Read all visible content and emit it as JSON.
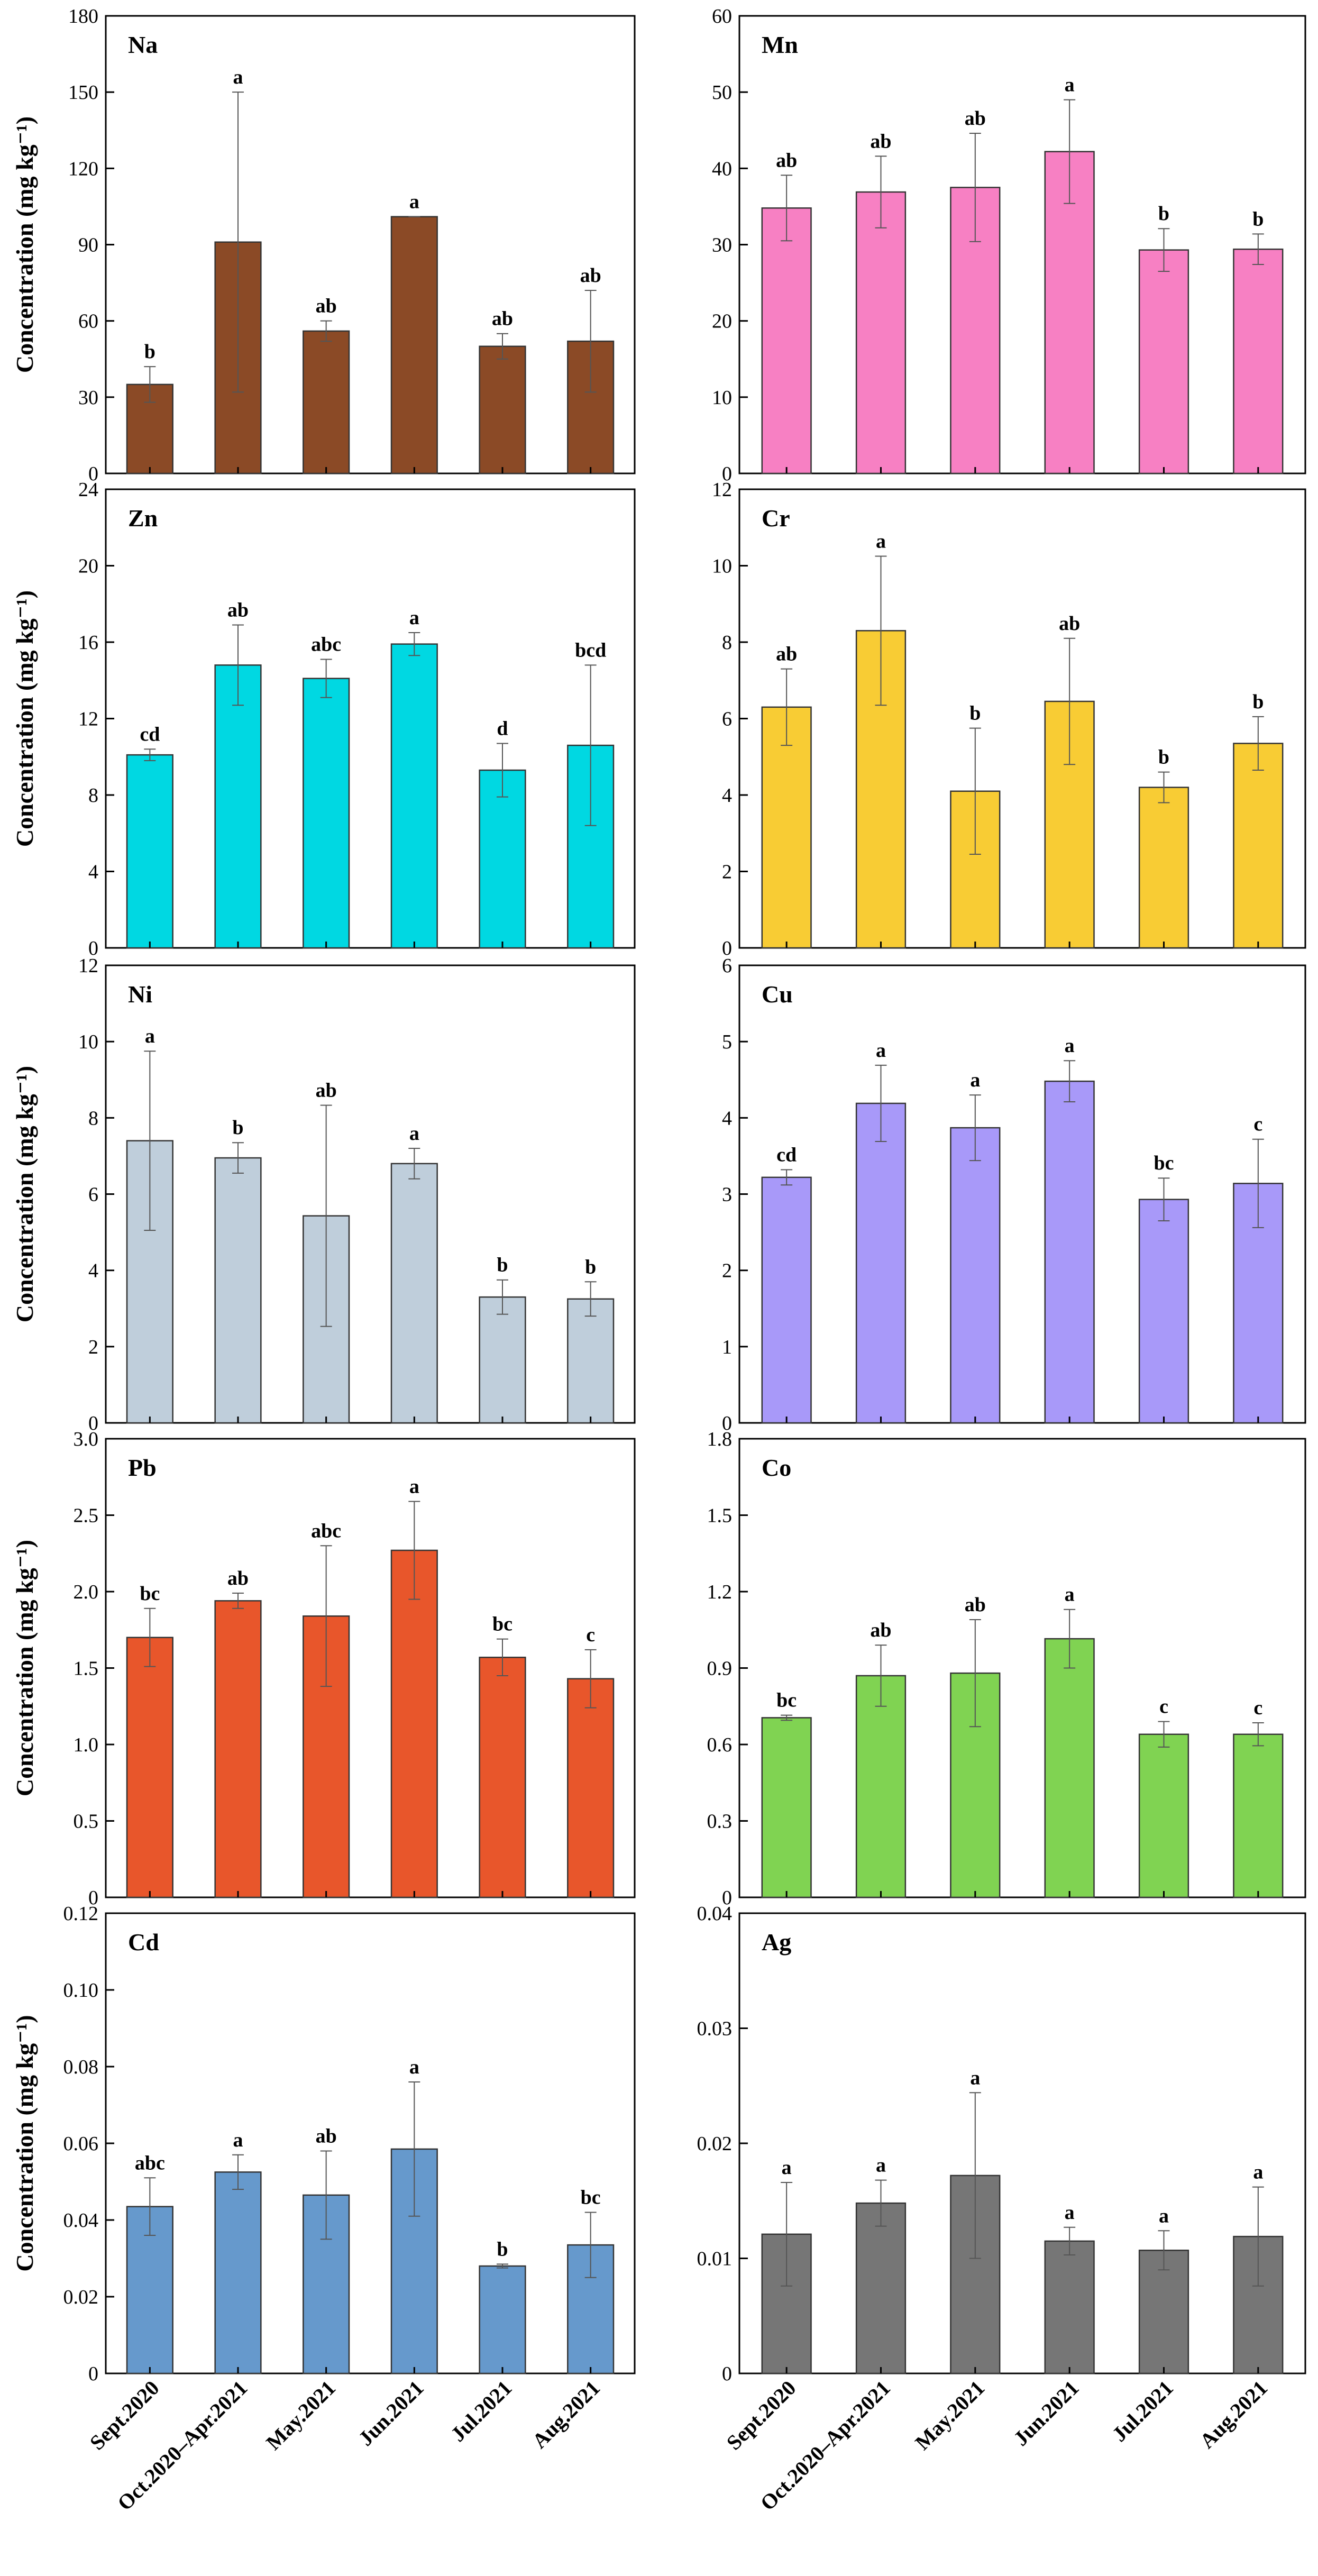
{
  "chart_data": [
    {
      "type": "bar",
      "title": "Na",
      "categories": [
        "Sept.2020",
        "Oct.2020–Apr.2021",
        "May.2021",
        "Jun.2021",
        "Jul.2021",
        "Aug.2021"
      ],
      "values": [
        35,
        91,
        56,
        101,
        50,
        52
      ],
      "errors": [
        7,
        59,
        4,
        0,
        5,
        20
      ],
      "letters": [
        "b",
        "a",
        "ab",
        "a",
        "ab",
        "ab"
      ],
      "ylabel": "Concentration (mg kg⁻¹)",
      "ylim": [
        0,
        180
      ],
      "yticks": [
        "0",
        "30",
        "60",
        "90",
        "120",
        "150",
        "180"
      ],
      "color": "#8B4A26"
    },
    {
      "type": "bar",
      "title": "Mn",
      "categories": [
        "Sept.2020",
        "Oct.2020–Apr.2021",
        "May.2021",
        "Jun.2021",
        "Jul.2021",
        "Aug.2021"
      ],
      "values": [
        34.8,
        36.9,
        37.5,
        42.2,
        29.3,
        29.4
      ],
      "errors": [
        4.3,
        4.7,
        7.1,
        6.8,
        2.8,
        2.0
      ],
      "letters": [
        "ab",
        "ab",
        "ab",
        "a",
        "b",
        "b"
      ],
      "ylabel": "",
      "ylim": [
        0,
        60
      ],
      "yticks": [
        "0",
        "10",
        "20",
        "30",
        "40",
        "50",
        "60"
      ],
      "color": "#F780C3"
    },
    {
      "type": "bar",
      "title": "Zn",
      "categories": [
        "Sept.2020",
        "Oct.2020–Apr.2021",
        "May.2021",
        "Jun.2021",
        "Jul.2021",
        "Aug.2021"
      ],
      "values": [
        10.1,
        14.8,
        14.1,
        15.9,
        9.3,
        10.6
      ],
      "errors": [
        0.3,
        2.1,
        1.0,
        0.6,
        1.4,
        4.2
      ],
      "letters": [
        "cd",
        "ab",
        "abc",
        "a",
        "d",
        "bcd"
      ],
      "ylabel": "Concentration (mg kg⁻¹)",
      "ylim": [
        0,
        24
      ],
      "yticks": [
        "0",
        "4",
        "8",
        "12",
        "16",
        "20",
        "24"
      ],
      "color": "#00D8E2"
    },
    {
      "type": "bar",
      "title": "Cr",
      "categories": [
        "Sept.2020",
        "Oct.2020–Apr.2021",
        "May.2021",
        "Jun.2021",
        "Jul.2021",
        "Aug.2021"
      ],
      "values": [
        6.3,
        8.3,
        4.1,
        6.45,
        4.2,
        5.35
      ],
      "errors": [
        1.0,
        1.95,
        1.65,
        1.65,
        0.4,
        0.7
      ],
      "letters": [
        "ab",
        "a",
        "b",
        "ab",
        "b",
        "b"
      ],
      "ylabel": "",
      "ylim": [
        0,
        12
      ],
      "yticks": [
        "0",
        "2",
        "4",
        "6",
        "8",
        "10",
        "12"
      ],
      "color": "#F8CC34"
    },
    {
      "type": "bar",
      "title": "Ni",
      "categories": [
        "Sept.2020",
        "Oct.2020–Apr.2021",
        "May.2021",
        "Jun.2021",
        "Jul.2021",
        "Aug.2021"
      ],
      "values": [
        7.4,
        6.95,
        5.43,
        6.8,
        3.3,
        3.25
      ],
      "errors": [
        2.35,
        0.4,
        2.9,
        0.4,
        0.45,
        0.45
      ],
      "letters": [
        "a",
        "b",
        "ab",
        "a",
        "b",
        "b"
      ],
      "ylabel": "Concentration (mg kg⁻¹)",
      "ylim": [
        0,
        12
      ],
      "yticks": [
        "0",
        "2",
        "4",
        "6",
        "8",
        "10",
        "12"
      ],
      "color": "#BFCEDB"
    },
    {
      "type": "bar",
      "title": "Cu",
      "categories": [
        "Sept.2020",
        "Oct.2020–Apr.2021",
        "May.2021",
        "Jun.2021",
        "Jul.2021",
        "Aug.2021"
      ],
      "values": [
        3.22,
        4.19,
        3.87,
        4.48,
        2.93,
        3.14
      ],
      "errors": [
        0.1,
        0.5,
        0.43,
        0.27,
        0.28,
        0.58
      ],
      "letters": [
        "cd",
        "a",
        "a",
        "a",
        "bc",
        "c"
      ],
      "ylabel": "",
      "ylim": [
        0,
        6
      ],
      "yticks": [
        "0",
        "1",
        "2",
        "3",
        "4",
        "5",
        "6"
      ],
      "color": "#A899F9"
    },
    {
      "type": "bar",
      "title": "Pb",
      "categories": [
        "Sept.2020",
        "Oct.2020–Apr.2021",
        "May.2021",
        "Jun.2021",
        "Jul.2021",
        "Aug.2021"
      ],
      "values": [
        1.7,
        1.94,
        1.84,
        2.27,
        1.57,
        1.43
      ],
      "errors": [
        0.19,
        0.05,
        0.46,
        0.32,
        0.12,
        0.19
      ],
      "letters": [
        "bc",
        "ab",
        "abc",
        "a",
        "bc",
        "c"
      ],
      "ylabel": "Concentration (mg kg⁻¹)",
      "ylim": [
        0,
        3.0
      ],
      "yticks": [
        "0",
        "0.5",
        "1.0",
        "1.5",
        "2.0",
        "2.5",
        "3.0"
      ],
      "color": "#E8562B"
    },
    {
      "type": "bar",
      "title": "Co",
      "categories": [
        "Sept.2020",
        "Oct.2020–Apr.2021",
        "May.2021",
        "Jun.2021",
        "Jul.2021",
        "Aug.2021"
      ],
      "values": [
        0.705,
        0.87,
        0.88,
        1.015,
        0.64,
        0.64
      ],
      "errors": [
        0.01,
        0.12,
        0.21,
        0.115,
        0.05,
        0.045
      ],
      "letters": [
        "bc",
        "ab",
        "ab",
        "a",
        "c",
        "c"
      ],
      "ylabel": "",
      "ylim": [
        0,
        1.8
      ],
      "yticks": [
        "0",
        "0.3",
        "0.6",
        "0.9",
        "1.2",
        "1.5",
        "1.8"
      ],
      "color": "#80D352"
    },
    {
      "type": "bar",
      "title": "Cd",
      "categories": [
        "Sept.2020",
        "Oct.2020–Apr.2021",
        "May.2021",
        "Jun.2021",
        "Jul.2021",
        "Aug.2021"
      ],
      "values": [
        0.0435,
        0.0525,
        0.0465,
        0.0585,
        0.028,
        0.0335
      ],
      "errors": [
        0.0075,
        0.0045,
        0.0115,
        0.0175,
        0.0005,
        0.0085
      ],
      "letters": [
        "abc",
        "a",
        "ab",
        "a",
        "b",
        "bc"
      ],
      "ylabel": "Concentration (mg kg⁻¹)",
      "ylim": [
        0,
        0.12
      ],
      "yticks": [
        "0",
        "0.02",
        "0.04",
        "0.06",
        "0.08",
        "0.10",
        "0.12"
      ],
      "color": "#6699CC"
    },
    {
      "type": "bar",
      "title": "Ag",
      "categories": [
        "Sept.2020",
        "Oct.2020–Apr.2021",
        "May.2021",
        "Jun.2021",
        "Jul.2021",
        "Aug.2021"
      ],
      "values": [
        0.0121,
        0.0148,
        0.0172,
        0.0115,
        0.0107,
        0.0119
      ],
      "errors": [
        0.0045,
        0.002,
        0.0072,
        0.0012,
        0.0017,
        0.0043
      ],
      "letters": [
        "a",
        "a",
        "a",
        "a",
        "a",
        "a"
      ],
      "ylabel": "",
      "ylim": [
        0,
        0.04
      ],
      "yticks": [
        "0",
        "0.01",
        "0.02",
        "0.03",
        "0.04"
      ],
      "color": "#767676"
    }
  ]
}
